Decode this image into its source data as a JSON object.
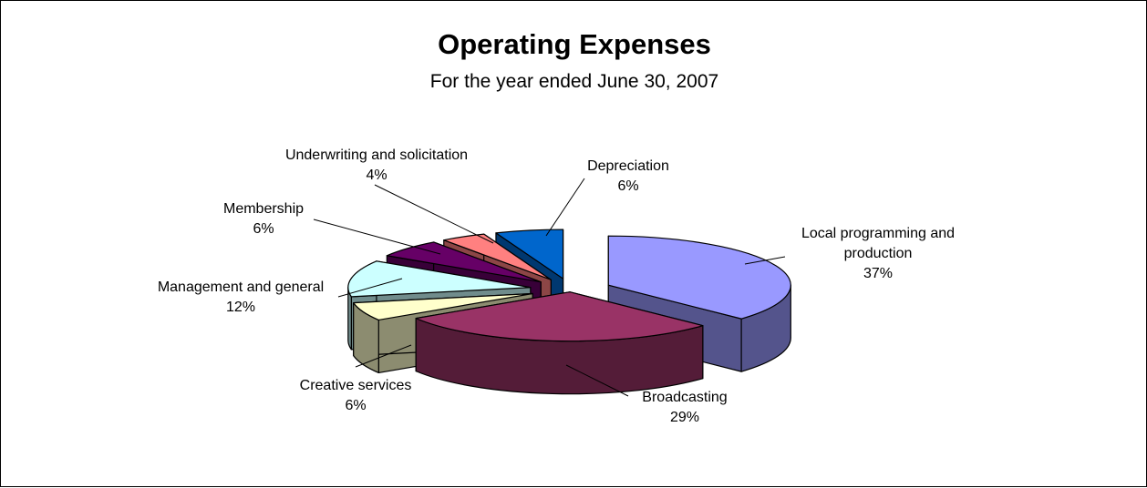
{
  "chart_data": {
    "type": "pie",
    "title": "Operating Expenses",
    "subtitle": "For the year ended June 30, 2007",
    "slices": [
      {
        "label": "Local programming and production",
        "value": 37,
        "display": "37%",
        "color": "#9999ff"
      },
      {
        "label": "Broadcasting",
        "value": 29,
        "display": "29%",
        "color": "#993366"
      },
      {
        "label": "Creative services",
        "value": 6,
        "display": "6%",
        "color": "#ffffcc"
      },
      {
        "label": "Management and general",
        "value": 12,
        "display": "12%",
        "color": "#ccffff"
      },
      {
        "label": "Membership",
        "value": 6,
        "display": "6%",
        "color": "#660066"
      },
      {
        "label": "Underwriting and solicitation",
        "value": 4,
        "display": "4%",
        "color": "#ff8080"
      },
      {
        "label": "Depreciation",
        "value": 6,
        "display": "6%",
        "color": "#0066cc"
      }
    ],
    "style": "3d-exploded",
    "legend": "none"
  }
}
